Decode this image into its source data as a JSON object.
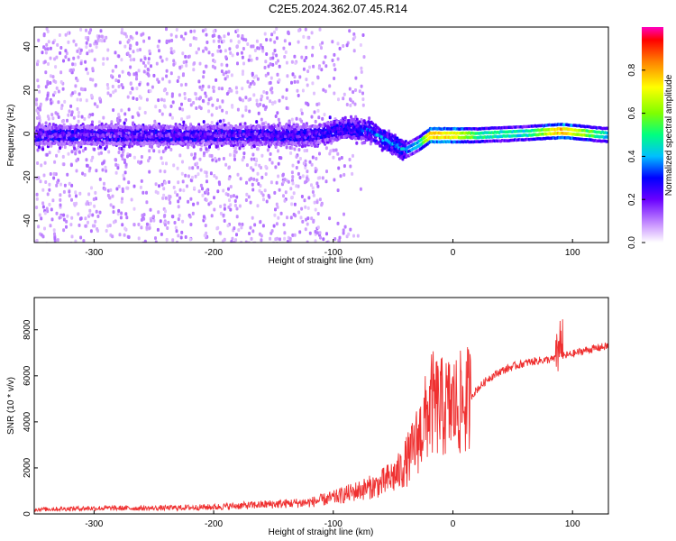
{
  "title": "C2E5.2024.362.07.45.R14",
  "colors": {
    "snr_line": "#ef3030",
    "frame": "#000000"
  },
  "chart_data": [
    {
      "type": "heatmap",
      "xlabel": "Height of straight line (km)",
      "ylabel": "Frequency (Hz)",
      "xlim": [
        -350,
        130
      ],
      "ylim": [
        -50,
        49
      ],
      "xticks": [
        -300,
        -200,
        -100,
        0,
        100
      ],
      "yticks": [
        -40,
        -20,
        0,
        20,
        40
      ],
      "colorbar": {
        "label": "Normalized spectral amplitude",
        "range": [
          0,
          1
        ],
        "ticks": [
          0.0,
          0.2,
          0.4,
          0.6,
          0.8
        ],
        "tick_labels": [
          "0.0",
          "0.2",
          "0.4",
          "0.6",
          "0.8"
        ]
      },
      "description_points": {
        "ridge_height_km": [
          -350,
          -120,
          -90,
          -70,
          -55,
          -40,
          -30,
          -20,
          0,
          20,
          60,
          90,
          130
        ],
        "ridge_freq_hz": [
          0,
          0,
          3,
          2,
          -3,
          -7,
          -4,
          0,
          0,
          0,
          1,
          2,
          0
        ],
        "ridge_amplitude": [
          0.18,
          0.2,
          0.28,
          0.35,
          0.42,
          0.4,
          0.5,
          0.95,
          0.9,
          0.6,
          0.55,
          0.97,
          0.5
        ]
      }
    },
    {
      "type": "line",
      "xlabel": "Height of straight line (km)",
      "ylabel": "SNR (10 * v/v)",
      "xlim": [
        -350,
        130
      ],
      "ylim": [
        0,
        9400
      ],
      "xticks": [
        -300,
        -200,
        -100,
        0,
        100
      ],
      "yticks": [
        0,
        2000,
        4000,
        6000,
        8000
      ],
      "series": [
        {
          "name": "SNR",
          "x": [
            -350,
            -300,
            -250,
            -200,
            -160,
            -120,
            -100,
            -80,
            -60,
            -45,
            -35,
            -25,
            -18,
            -10,
            0,
            10,
            20,
            30,
            40,
            50,
            60,
            70,
            80,
            88,
            92,
            100,
            110,
            120,
            130
          ],
          "y": [
            200,
            250,
            250,
            300,
            400,
            500,
            700,
            1000,
            1300,
            1800,
            2600,
            3800,
            4800,
            4600,
            4700,
            4800,
            5400,
            5900,
            6200,
            6400,
            6550,
            6650,
            6700,
            6750,
            6850,
            6950,
            7100,
            7200,
            7300
          ]
        }
      ]
    }
  ]
}
